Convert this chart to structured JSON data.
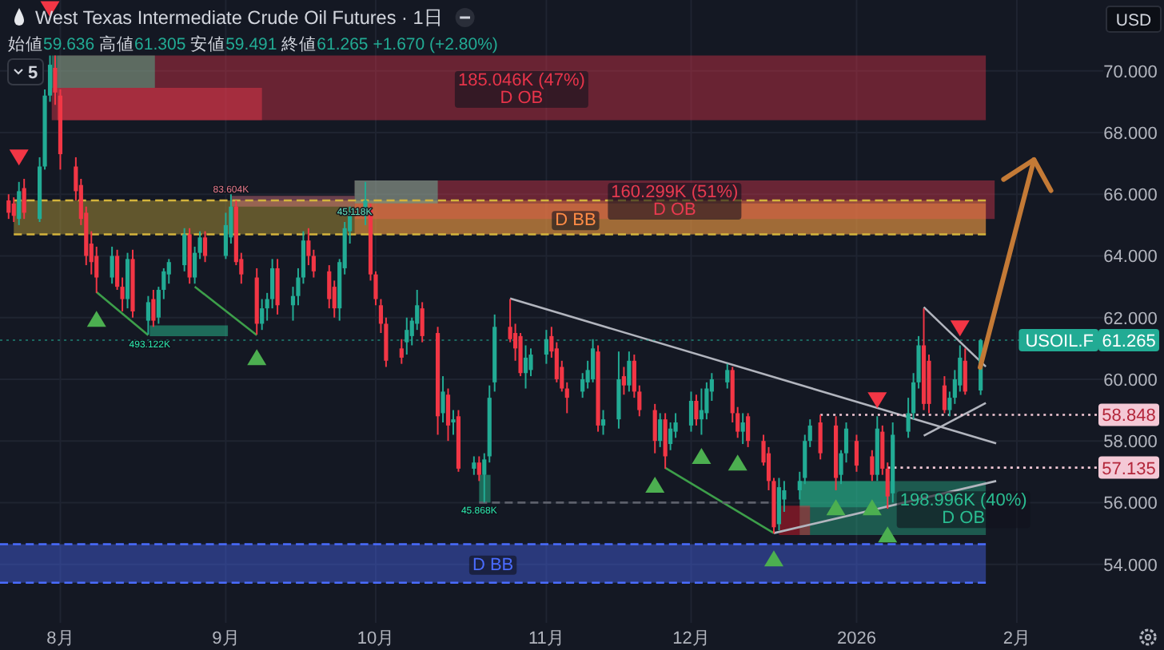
{
  "chart_data": {
    "type": "candlestick",
    "title": "West Texas Intermediate Crude Oil Futures · 1日",
    "subtitle": "始値59.636 高値61.305 安値59.491 終値61.265 +1.670 (+2.80%)",
    "ylabel": "USD",
    "x": [
      "2025-07-22",
      "2025-07-23",
      "2025-07-24",
      "2025-07-25",
      "2025-07-28",
      "2025-07-29",
      "2025-07-30",
      "2025-07-31",
      "2025-08-01",
      "2025-08-04",
      "2025-08-05",
      "2025-08-06",
      "2025-08-07",
      "2025-08-08",
      "2025-08-11",
      "2025-08-12",
      "2025-08-13",
      "2025-08-14",
      "2025-08-15",
      "2025-08-18",
      "2025-08-19",
      "2025-08-20",
      "2025-08-21",
      "2025-08-22",
      "2025-08-25",
      "2025-08-26",
      "2025-08-27",
      "2025-08-28",
      "2025-08-29",
      "2025-09-02",
      "2025-09-03",
      "2025-09-04",
      "2025-09-05",
      "2025-09-08",
      "2025-09-09",
      "2025-09-10",
      "2025-09-11",
      "2025-09-12",
      "2025-09-15",
      "2025-09-16",
      "2025-09-17",
      "2025-09-18",
      "2025-09-19",
      "2025-09-22",
      "2025-09-23",
      "2025-09-24",
      "2025-09-25",
      "2025-09-26",
      "2025-09-29",
      "2025-09-30",
      "2025-10-01",
      "2025-10-02",
      "2025-10-03",
      "2025-10-06",
      "2025-10-07",
      "2025-10-08",
      "2025-10-09",
      "2025-10-10",
      "2025-10-13",
      "2025-10-14",
      "2025-10-15",
      "2025-10-16",
      "2025-10-17",
      "2025-10-20",
      "2025-10-21",
      "2025-10-22",
      "2025-10-23",
      "2025-10-24",
      "2025-10-27",
      "2025-10-28",
      "2025-10-29",
      "2025-10-30",
      "2025-10-31",
      "2025-11-03",
      "2025-11-04",
      "2025-11-05",
      "2025-11-06",
      "2025-11-07",
      "2025-11-10",
      "2025-11-11",
      "2025-11-12",
      "2025-11-13",
      "2025-11-14",
      "2025-11-17",
      "2025-11-18",
      "2025-11-19",
      "2025-11-20",
      "2025-11-21",
      "2025-11-24",
      "2025-11-25",
      "2025-11-26",
      "2025-11-27",
      "2025-11-28",
      "2025-12-01",
      "2025-12-02",
      "2025-12-03",
      "2025-12-04",
      "2025-12-05",
      "2025-12-08",
      "2025-12-09",
      "2025-12-10",
      "2025-12-11",
      "2025-12-12",
      "2025-12-15",
      "2025-12-16",
      "2025-12-17",
      "2025-12-18",
      "2025-12-19",
      "2025-12-22",
      "2025-12-23",
      "2025-12-24",
      "2025-12-26",
      "2025-12-29",
      "2025-12-30",
      "2025-12-31",
      "2026-01-02",
      "2026-01-05",
      "2026-01-06",
      "2026-01-07",
      "2026-01-08",
      "2026-01-09",
      "2026-01-12",
      "2026-01-13",
      "2026-01-14",
      "2026-01-15",
      "2026-01-16",
      "2026-01-19",
      "2026-01-20",
      "2026-01-21",
      "2026-01-22",
      "2026-01-23",
      "2026-01-26"
    ],
    "ohlc": [
      [
        65.8,
        66.0,
        65.2,
        65.4
      ],
      [
        65.7,
        65.9,
        65.1,
        65.3
      ],
      [
        65.2,
        66.4,
        65.0,
        66.1
      ],
      [
        66.2,
        66.5,
        65.2,
        65.4
      ],
      [
        65.2,
        67.2,
        65.1,
        66.9
      ],
      [
        66.9,
        69.4,
        66.8,
        69.2
      ],
      [
        69.2,
        70.5,
        69.0,
        70.2
      ],
      [
        70.1,
        70.5,
        68.9,
        69.3
      ],
      [
        69.2,
        69.4,
        66.8,
        67.3
      ],
      [
        66.9,
        67.2,
        65.8,
        66.1
      ],
      [
        66.3,
        66.5,
        65.0,
        65.2
      ],
      [
        65.4,
        65.6,
        63.7,
        64.0
      ],
      [
        64.4,
        64.8,
        63.4,
        63.8
      ],
      [
        64.0,
        64.3,
        62.8,
        63.3
      ],
      [
        63.3,
        64.3,
        63.1,
        64.0
      ],
      [
        64.0,
        64.2,
        62.9,
        63.0
      ],
      [
        63.0,
        63.3,
        62.2,
        62.6
      ],
      [
        62.6,
        64.1,
        62.3,
        63.9
      ],
      [
        63.9,
        64.2,
        62.0,
        62.2
      ],
      [
        61.9,
        62.7,
        61.45,
        62.5
      ],
      [
        62.6,
        62.9,
        61.7,
        61.9
      ],
      [
        62.0,
        63.0,
        61.8,
        62.9
      ],
      [
        62.9,
        63.6,
        62.6,
        63.5
      ],
      [
        63.4,
        63.9,
        63.1,
        63.8
      ],
      [
        63.7,
        64.9,
        63.5,
        64.7
      ],
      [
        64.7,
        64.9,
        63.1,
        63.3
      ],
      [
        63.3,
        64.3,
        63.1,
        64.1
      ],
      [
        64.1,
        64.8,
        63.9,
        64.6
      ],
      [
        64.6,
        64.8,
        63.8,
        64.0
      ],
      [
        64.0,
        65.4,
        63.9,
        65.0
      ],
      [
        64.6,
        66.0,
        64.4,
        65.6
      ],
      [
        65.6,
        65.8,
        63.7,
        63.8
      ],
      [
        63.9,
        64.1,
        63.1,
        63.4
      ],
      [
        63.3,
        63.6,
        61.45,
        61.8
      ],
      [
        61.8,
        62.6,
        61.6,
        62.3
      ],
      [
        62.3,
        62.8,
        61.9,
        62.6
      ],
      [
        62.6,
        63.9,
        62.3,
        63.6
      ],
      [
        63.6,
        63.9,
        62.1,
        62.4
      ],
      [
        62.4,
        63.0,
        61.9,
        62.7
      ],
      [
        62.7,
        63.6,
        62.4,
        63.3
      ],
      [
        63.3,
        64.8,
        63.1,
        64.5
      ],
      [
        64.5,
        64.9,
        63.7,
        64.0
      ],
      [
        64.0,
        64.2,
        63.3,
        63.5
      ],
      [
        63.5,
        63.7,
        62.3,
        62.6
      ],
      [
        63.0,
        63.2,
        62.0,
        62.3
      ],
      [
        62.3,
        63.9,
        61.9,
        63.8
      ],
      [
        63.6,
        65.1,
        63.4,
        64.9
      ],
      [
        64.8,
        65.6,
        64.4,
        65.3
      ],
      [
        65.3,
        66.4,
        65.0,
        65.8
      ],
      [
        65.5,
        65.7,
        63.2,
        63.4
      ],
      [
        63.4,
        63.5,
        62.4,
        62.6
      ],
      [
        62.4,
        62.6,
        61.5,
        61.8
      ],
      [
        61.8,
        62.0,
        60.4,
        60.6
      ],
      [
        61.0,
        61.3,
        60.5,
        60.7
      ],
      [
        61.2,
        62.0,
        60.8,
        61.6
      ],
      [
        61.4,
        62.0,
        61.1,
        61.9
      ],
      [
        61.8,
        62.9,
        61.6,
        62.4
      ],
      [
        62.3,
        62.5,
        61.2,
        61.4
      ],
      [
        61.5,
        61.7,
        58.2,
        58.8
      ],
      [
        58.9,
        60.1,
        58.6,
        59.6
      ],
      [
        59.5,
        59.7,
        58.0,
        58.5
      ],
      [
        58.6,
        59.0,
        58.2,
        58.7
      ],
      [
        58.8,
        59.0,
        57.0,
        57.1
      ],
      [
        57.1,
        57.5,
        56.9,
        57.3
      ],
      [
        57.3,
        57.5,
        56.7,
        56.9
      ],
      [
        56.9,
        57.6,
        56.0,
        57.4
      ],
      [
        57.5,
        59.8,
        57.3,
        59.4
      ],
      [
        59.9,
        62.1,
        59.6,
        61.7
      ],
      [
        61.7,
        62.6,
        61.2,
        61.3
      ],
      [
        61.5,
        61.8,
        60.6,
        61.0
      ],
      [
        61.4,
        61.5,
        60.1,
        60.2
      ],
      [
        60.2,
        61.1,
        59.7,
        60.7
      ],
      [
        60.3,
        61.0,
        60.1,
        60.8
      ],
      [
        60.8,
        61.6,
        60.5,
        61.3
      ],
      [
        61.4,
        61.7,
        60.7,
        60.9
      ],
      [
        61.0,
        61.2,
        59.9,
        60.0
      ],
      [
        60.4,
        60.6,
        59.6,
        59.7
      ],
      [
        59.7,
        59.9,
        58.9,
        59.4
      ],
      [
        59.6,
        60.2,
        59.4,
        60.0
      ],
      [
        59.9,
        60.6,
        59.7,
        60.3
      ],
      [
        60.0,
        61.3,
        59.9,
        61.0
      ],
      [
        60.9,
        61.1,
        58.3,
        58.5
      ],
      [
        58.5,
        59.0,
        58.2,
        58.7
      ],
      [
        58.7,
        60.9,
        58.4,
        60.0
      ],
      [
        60.1,
        60.4,
        59.5,
        59.8
      ],
      [
        59.8,
        60.9,
        59.6,
        60.6
      ],
      [
        60.6,
        60.8,
        59.4,
        59.6
      ],
      [
        59.6,
        59.8,
        58.8,
        59.0
      ],
      [
        59.0,
        59.2,
        57.6,
        58.0
      ],
      [
        58.0,
        58.9,
        57.8,
        58.7
      ],
      [
        58.7,
        58.9,
        57.1,
        57.5
      ],
      [
        57.9,
        58.6,
        57.7,
        58.4
      ],
      [
        58.3,
        58.9,
        58.1,
        58.6
      ],
      [
        58.5,
        59.6,
        58.3,
        59.3
      ],
      [
        59.3,
        59.5,
        58.5,
        58.7
      ],
      [
        58.7,
        59.7,
        58.2,
        59.0
      ],
      [
        58.9,
        59.9,
        58.7,
        59.7
      ],
      [
        59.6,
        60.2,
        59.3,
        60.0
      ],
      [
        59.9,
        60.5,
        59.7,
        60.3
      ],
      [
        60.3,
        60.4,
        58.6,
        58.9
      ],
      [
        58.9,
        59.1,
        58.1,
        58.3
      ],
      [
        58.3,
        58.9,
        57.9,
        58.6
      ],
      [
        58.8,
        58.9,
        57.8,
        58.0
      ],
      [
        58.0,
        58.2,
        57.2,
        57.3
      ],
      [
        57.6,
        57.8,
        56.4,
        56.7
      ],
      [
        56.7,
        56.8,
        55.0,
        55.2
      ],
      [
        55.3,
        56.8,
        55.1,
        56.5
      ],
      [
        56.1,
        56.7,
        55.7,
        56.4
      ],
      [
        56.4,
        57.0,
        56.1,
        56.7
      ],
      [
        56.8,
        58.2,
        56.6,
        58.0
      ],
      [
        58.0,
        58.7,
        57.8,
        58.5
      ],
      [
        58.6,
        58.85,
        57.4,
        57.6
      ],
      [
        58.5,
        58.8,
        56.4,
        56.8
      ],
      [
        56.9,
        57.7,
        56.6,
        57.6
      ],
      [
        57.6,
        58.6,
        57.3,
        58.4
      ],
      [
        58.0,
        58.2,
        57.0,
        57.2
      ],
      [
        57.5,
        57.7,
        56.7,
        56.9
      ],
      [
        56.9,
        58.8,
        56.7,
        58.4
      ],
      [
        58.3,
        58.5,
        56.9,
        57.1
      ],
      [
        57.1,
        57.3,
        55.8,
        56.2
      ],
      [
        56.3,
        58.6,
        56.0,
        58.2
      ],
      [
        58.3,
        59.4,
        58.1,
        58.9
      ],
      [
        58.9,
        60.2,
        58.7,
        59.9
      ],
      [
        59.9,
        61.4,
        59.7,
        61.1
      ],
      [
        61.1,
        62.3,
        59.0,
        59.2
      ],
      [
        60.6,
        60.8,
        58.9,
        59.2
      ],
      [
        59.8,
        60.1,
        58.9,
        59.0
      ],
      [
        59.0,
        59.6,
        58.8,
        59.4
      ],
      [
        59.4,
        60.3,
        59.2,
        60.0
      ],
      [
        59.8,
        61.1,
        59.6,
        60.7
      ],
      [
        60.6,
        61.0,
        59.5,
        59.6
      ],
      [
        59.636,
        61.305,
        59.491,
        61.265
      ]
    ],
    "xlim": [
      "2025-07-20T08:00",
      "2026-02-18T17:00"
    ],
    "xticks": [
      {
        "value": "2025-08-01",
        "label": "8月"
      },
      {
        "value": "2025-09-02",
        "label": "9月"
      },
      {
        "value": "2025-10-01",
        "label": "10月"
      },
      {
        "value": "2025-11-03",
        "label": "11月"
      },
      {
        "value": "2025-12-01",
        "label": "12月"
      },
      {
        "value": "2026-01-02",
        "label": "2026"
      },
      {
        "value": "2026-02-02",
        "label": "2月"
      }
    ],
    "ylim": [
      52.1,
      72.3
    ],
    "yticks": [
      {
        "value": 54,
        "label": "54.000"
      },
      {
        "value": 56,
        "label": "56.000"
      },
      {
        "value": 58,
        "label": "58.000"
      },
      {
        "value": 60,
        "label": "60.000"
      },
      {
        "value": 62,
        "label": "62.000"
      },
      {
        "value": 64,
        "label": "64.000"
      },
      {
        "value": 66,
        "label": "66.000"
      },
      {
        "value": 68,
        "label": "68.000"
      },
      {
        "value": 70,
        "label": "70.000"
      }
    ],
    "grid": true,
    "series": [
      {
        "type": "line",
        "color": "#d4b43c",
        "x": [
          "2025-07-23",
          "2026-01-27"
        ],
        "values": [
          null,
          null
        ],
        "lower": [
          64.7,
          64.7
        ],
        "upper": [
          65.8,
          65.8
        ]
      },
      {
        "type": "line",
        "name": "185.046K (47%)\nD OB",
        "color": "#e8344a",
        "x": [
          "2025-07-31T10:00",
          "2026-01-27"
        ],
        "values": [
          null,
          null
        ],
        "lower": [
          68.4,
          68.4
        ],
        "upper": [
          70.5,
          70.5
        ]
      },
      {
        "type": "line",
        "color": "#4bd6a8",
        "x": [
          "2025-07-30T08:00",
          "2025-08-19T07:00"
        ],
        "values": [
          null,
          null
        ],
        "lower": [
          69.45,
          69.45
        ],
        "upper": [
          70.5,
          70.5
        ]
      },
      {
        "type": "line",
        "color": "#ff3c50",
        "x": [
          "2025-07-30T08:00",
          "2025-09-09"
        ],
        "values": [
          null,
          null
        ],
        "lower": [
          68.4,
          68.4
        ],
        "upper": [
          69.45,
          69.45
        ]
      },
      {
        "type": "line",
        "name": "160.299K (51%)\nD OB",
        "color": "#e83a50",
        "x": [
          "2025-09-26T22:00",
          "2026-01-28T17:00"
        ],
        "values": [
          null,
          null
        ],
        "lower": [
          65.2,
          65.2
        ],
        "upper": [
          66.45,
          66.45
        ]
      },
      {
        "type": "line",
        "name": "45.118K",
        "color": "#63e0be",
        "x": [
          "2025-09-26T22:00",
          "2025-10-13"
        ],
        "values": [
          null,
          null
        ],
        "lower": [
          65.7,
          65.7
        ],
        "upper": [
          66.45,
          66.45
        ]
      },
      {
        "type": "line",
        "name": "D BB",
        "color": "#ff8c46",
        "x": [
          "2025-09-26T22:00",
          "2026-01-27"
        ],
        "values": [
          null,
          null
        ],
        "lower": [
          64.7,
          64.7
        ],
        "upper": [
          65.7,
          65.7
        ]
      },
      {
        "type": "line",
        "name": "83.604K",
        "color": "#e87a8a",
        "x": [
          "2025-09-03",
          "2025-09-26T22:00"
        ],
        "values": [
          null,
          null
        ],
        "lower": [
          65.6,
          65.6
        ],
        "upper": [
          65.95,
          65.95
        ]
      },
      {
        "type": "line",
        "name": "493.122K",
        "color": "#2de8ac",
        "x": [
          "2025-08-18T07:00",
          "2025-09-02T10:00"
        ],
        "values": [
          null,
          null
        ],
        "lower": [
          61.4,
          61.4
        ],
        "upper": [
          61.75,
          61.75
        ]
      },
      {
        "type": "line",
        "name": "45.868K",
        "color": "#2de8ac",
        "x": [
          "2025-10-21",
          "2025-10-23T05:00"
        ],
        "values": [
          null,
          null
        ],
        "lower": [
          56.0,
          56.0
        ],
        "upper": [
          56.9,
          56.9
        ]
      },
      {
        "type": "line",
        "name": "198.996K (40%)\nD OB",
        "color": "#2abd91",
        "x": [
          "2025-12-22",
          "2026-01-27"
        ],
        "values": [
          null,
          null
        ],
        "lower": [
          54.95,
          54.95
        ],
        "upper": [
          56.7,
          56.7
        ]
      },
      {
        "type": "line",
        "color": "#27c097",
        "x": [
          "2025-12-22",
          "2026-01-08T06:00"
        ],
        "values": [
          null,
          null
        ],
        "lower": [
          55.85,
          55.85
        ],
        "upper": [
          56.7,
          56.7
        ]
      },
      {
        "type": "line",
        "color": "#ff1a2a",
        "x": [
          "2025-12-18",
          "2025-12-24"
        ],
        "values": [
          null,
          null
        ],
        "lower": [
          54.95,
          54.95
        ],
        "upper": [
          55.9,
          55.9
        ]
      },
      {
        "type": "line",
        "name": "D BB",
        "color": "#4a6cff",
        "x": [
          "2025-07-20T08:00",
          "2026-01-27"
        ],
        "values": [
          null,
          null
        ],
        "lower": [
          53.4,
          53.4
        ],
        "upper": [
          54.65,
          54.65
        ]
      },
      {
        "type": "line",
        "color": "#d4b43c",
        "line_style": "dashed",
        "x": [
          "2025-07-23",
          "2026-01-27"
        ],
        "values": [
          65.8,
          65.8
        ]
      },
      {
        "type": "line",
        "color": "#d4b43c",
        "line_style": "dashed",
        "x": [
          "2025-07-23",
          "2026-01-27"
        ],
        "values": [
          64.7,
          64.7
        ]
      },
      {
        "type": "line",
        "color": "#4a6cff",
        "line_style": "dashed",
        "x": [
          "2025-07-20T08:00",
          "2026-01-27"
        ],
        "values": [
          54.65,
          54.65
        ]
      },
      {
        "type": "line",
        "color": "#4a6cff",
        "line_style": "dashed",
        "x": [
          "2025-07-20T08:00",
          "2026-01-27"
        ],
        "values": [
          53.4,
          53.4
        ]
      },
      {
        "type": "line",
        "color": "#b2b5be",
        "x": [
          "2025-10-27",
          "2026-01-29"
        ],
        "values": [
          62.62,
          57.92
        ]
      },
      {
        "type": "line",
        "color": "#b2b5be",
        "x": [
          "2026-01-15",
          "2026-01-27"
        ],
        "values": [
          62.34,
          60.41
        ]
      },
      {
        "type": "line",
        "color": "#b2b5be",
        "x": [
          "2026-01-15",
          "2026-01-27"
        ],
        "values": [
          58.17,
          59.23
        ]
      },
      {
        "type": "line",
        "color": "#b2b5be",
        "x": [
          "2025-12-17",
          "2026-01-29"
        ],
        "values": [
          55.01,
          56.7
        ]
      },
      {
        "type": "line",
        "color": "#3d9f4a",
        "x": [
          "2025-08-08",
          "2025-08-18"
        ],
        "values": [
          62.83,
          61.43
        ]
      },
      {
        "type": "line",
        "color": "#3d9f4a",
        "x": [
          "2025-08-27",
          "2025-09-08"
        ],
        "values": [
          63.0,
          61.43
        ]
      },
      {
        "type": "line",
        "color": "#3d9f4a",
        "x": [
          "2025-11-26",
          "2025-12-17"
        ],
        "values": [
          57.13,
          55.01
        ]
      },
      {
        "type": "line",
        "color": "#5d606b",
        "line_style": "dashed",
        "x": [
          "2025-10-21",
          "2025-12-16"
        ],
        "values": [
          56.0,
          56.0
        ]
      },
      {
        "type": "line",
        "name": "58.848",
        "color": "#f4c9d6",
        "line_style": "dotted",
        "x": [
          "2025-12-26",
          "2026-02-18T17:00"
        ],
        "values": [
          58.848,
          58.848
        ]
      },
      {
        "type": "line",
        "name": "57.135",
        "color": "#f4c9d6",
        "line_style": "dotted",
        "x": [
          "2026-01-08",
          "2026-02-18T17:00"
        ],
        "values": [
          57.135,
          57.135
        ]
      },
      {
        "type": "scatter",
        "marker": "triangle",
        "color": "#4caf50",
        "x": [
          "2025-08-08",
          "2025-09-08",
          "2025-11-24",
          "2025-12-03",
          "2025-12-10",
          "2025-12-17",
          "2025-12-29",
          "2026-01-05",
          "2026-01-08"
        ],
        "values": [
          61.96,
          60.72,
          56.58,
          57.51,
          57.3,
          54.19,
          55.85,
          55.85,
          54.97
        ]
      },
      {
        "type": "scatter",
        "marker": "triangle-down",
        "color": "#f23645",
        "x": [
          "2025-07-24",
          "2025-07-30",
          "2026-01-06",
          "2026-01-22"
        ],
        "values": [
          67.19,
          72.0,
          59.32,
          61.65
        ]
      }
    ],
    "ref_lines": [
      {
        "axis": "y",
        "value": 61.265,
        "label": "USOIL.F 61.265",
        "color": "#22ab94",
        "line_style": "dotted"
      }
    ],
    "annotations": [
      "5"
    ]
  }
}
